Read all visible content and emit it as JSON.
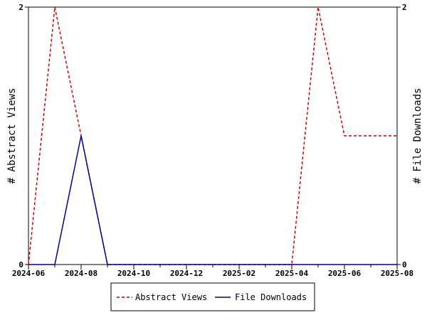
{
  "chart_data": {
    "type": "line",
    "x_axis": {
      "ticks": [
        "2024-06",
        "2024-08",
        "2024-10",
        "2024-12",
        "2025-02",
        "2025-04",
        "2025-06",
        "2025-08"
      ],
      "range": [
        "2024-06",
        "2025-08"
      ]
    },
    "y_axis_left": {
      "label": "# Abstract Views",
      "ticks": [
        "0",
        "2"
      ],
      "range": [
        0,
        2
      ]
    },
    "y_axis_right": {
      "label": "# File Downloads",
      "ticks": [
        "0",
        "2"
      ],
      "range": [
        0,
        2
      ]
    },
    "series": [
      {
        "name": "Abstract Views",
        "color": "#cc0000",
        "dash": "dashed",
        "axis": "left",
        "x": [
          "2024-06",
          "2024-07",
          "2024-08",
          "2024-09",
          "2024-10",
          "2024-11",
          "2024-12",
          "2025-01",
          "2025-02",
          "2025-03",
          "2025-04",
          "2025-05",
          "2025-06",
          "2025-07",
          "2025-08"
        ],
        "values": [
          0,
          2,
          1,
          0,
          0,
          0,
          0,
          0,
          0,
          0,
          0,
          2,
          1,
          1,
          1
        ]
      },
      {
        "name": "File Downloads",
        "color": "#000099",
        "dash": "solid",
        "axis": "right",
        "x": [
          "2024-06",
          "2024-07",
          "2024-08",
          "2024-09",
          "2024-10",
          "2024-11",
          "2024-12",
          "2025-01",
          "2025-02",
          "2025-03",
          "2025-04",
          "2025-05",
          "2025-06",
          "2025-07",
          "2025-08"
        ],
        "values": [
          0,
          0,
          1,
          0,
          0,
          0,
          0,
          0,
          0,
          0,
          0,
          0,
          0,
          0,
          0
        ]
      }
    ],
    "grid": false,
    "legend": {
      "placement": "bottom-center"
    }
  }
}
